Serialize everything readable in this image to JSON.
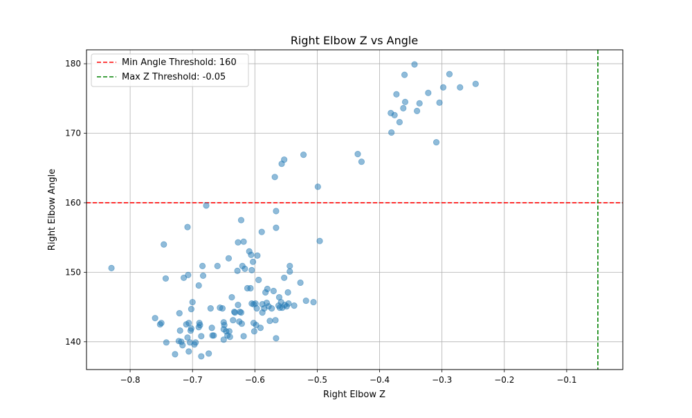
{
  "chart_data": {
    "type": "scatter",
    "title": "Right Elbow Z vs Angle",
    "xlabel": "Right Elbow Z",
    "ylabel": "Right Elbow Angle",
    "xlim": [
      -0.87,
      -0.01
    ],
    "ylim": [
      136,
      182
    ],
    "xticks": [
      -0.8,
      -0.7,
      -0.6,
      -0.5,
      -0.4,
      -0.3,
      -0.2,
      -0.1
    ],
    "xtick_labels": [
      "−0.8",
      "−0.7",
      "−0.6",
      "−0.5",
      "−0.4",
      "−0.3",
      "−0.2",
      "−0.1"
    ],
    "yticks": [
      140,
      150,
      160,
      170,
      180
    ],
    "ytick_labels": [
      "140",
      "150",
      "160",
      "170",
      "180"
    ],
    "grid": true,
    "legend_position": "top-left",
    "point_color": "#1f77b4",
    "point_alpha": 0.5,
    "thresholds": [
      {
        "label": "Min Angle Threshold: 160",
        "orientation": "horizontal",
        "value": 160,
        "color": "#ff0000"
      },
      {
        "label": "Max Z Threshold: -0.05",
        "orientation": "vertical",
        "value": -0.05,
        "color": "#008000"
      }
    ],
    "points": [
      [
        -0.83,
        150.6
      ],
      [
        -0.76,
        143.4
      ],
      [
        -0.752,
        142.5
      ],
      [
        -0.75,
        142.7
      ],
      [
        -0.746,
        154.0
      ],
      [
        -0.743,
        149.1
      ],
      [
        -0.742,
        139.9
      ],
      [
        -0.728,
        138.2
      ],
      [
        -0.722,
        140.1
      ],
      [
        -0.721,
        144.1
      ],
      [
        -0.72,
        141.6
      ],
      [
        -0.718,
        140.0
      ],
      [
        -0.716,
        139.5
      ],
      [
        -0.714,
        149.2
      ],
      [
        -0.71,
        142.5
      ],
      [
        -0.708,
        156.5
      ],
      [
        -0.708,
        140.6
      ],
      [
        -0.707,
        149.6
      ],
      [
        -0.706,
        142.7
      ],
      [
        -0.706,
        138.6
      ],
      [
        -0.704,
        139.9
      ],
      [
        -0.703,
        141.6
      ],
      [
        -0.702,
        141.9
      ],
      [
        -0.702,
        144.7
      ],
      [
        -0.7,
        145.7
      ],
      [
        -0.697,
        139.6
      ],
      [
        -0.695,
        139.9
      ],
      [
        -0.69,
        148.1
      ],
      [
        -0.69,
        142.1
      ],
      [
        -0.689,
        142.7
      ],
      [
        -0.688,
        142.4
      ],
      [
        -0.686,
        137.9
      ],
      [
        -0.686,
        140.8
      ],
      [
        -0.684,
        150.9
      ],
      [
        -0.683,
        149.5
      ],
      [
        -0.678,
        159.6
      ],
      [
        -0.674,
        138.3
      ],
      [
        -0.671,
        144.8
      ],
      [
        -0.669,
        142.0
      ],
      [
        -0.668,
        140.9
      ],
      [
        -0.666,
        140.9
      ],
      [
        -0.66,
        150.9
      ],
      [
        -0.656,
        144.9
      ],
      [
        -0.652,
        144.8
      ],
      [
        -0.65,
        141.8
      ],
      [
        -0.65,
        140.3
      ],
      [
        -0.65,
        142.8
      ],
      [
        -0.649,
        142.4
      ],
      [
        -0.646,
        141.5
      ],
      [
        -0.644,
        140.9
      ],
      [
        -0.642,
        152.0
      ],
      [
        -0.641,
        141.5
      ],
      [
        -0.64,
        140.7
      ],
      [
        -0.637,
        146.4
      ],
      [
        -0.635,
        143.1
      ],
      [
        -0.633,
        144.3
      ],
      [
        -0.632,
        144.2
      ],
      [
        -0.628,
        150.2
      ],
      [
        -0.627,
        154.3
      ],
      [
        -0.627,
        145.3
      ],
      [
        -0.625,
        142.9
      ],
      [
        -0.624,
        144.3
      ],
      [
        -0.622,
        144.2
      ],
      [
        -0.622,
        157.5
      ],
      [
        -0.621,
        142.6
      ],
      [
        -0.62,
        150.9
      ],
      [
        -0.618,
        154.4
      ],
      [
        -0.618,
        140.8
      ],
      [
        -0.616,
        150.5
      ],
      [
        -0.612,
        147.7
      ],
      [
        -0.609,
        153.0
      ],
      [
        -0.607,
        147.7
      ],
      [
        -0.606,
        152.5
      ],
      [
        -0.605,
        145.5
      ],
      [
        -0.605,
        150.3
      ],
      [
        -0.603,
        151.5
      ],
      [
        -0.602,
        145.4
      ],
      [
        -0.602,
        142.7
      ],
      [
        -0.601,
        141.5
      ],
      [
        -0.599,
        145.5
      ],
      [
        -0.598,
        142.4
      ],
      [
        -0.597,
        144.8
      ],
      [
        -0.596,
        152.4
      ],
      [
        -0.594,
        148.9
      ],
      [
        -0.591,
        142.0
      ],
      [
        -0.589,
        155.8
      ],
      [
        -0.588,
        144.2
      ],
      [
        -0.588,
        145.4
      ],
      [
        -0.585,
        144.8
      ],
      [
        -0.583,
        147.1
      ],
      [
        -0.581,
        145.6
      ],
      [
        -0.58,
        147.6
      ],
      [
        -0.578,
        145.1
      ],
      [
        -0.576,
        143.0
      ],
      [
        -0.573,
        144.8
      ],
      [
        -0.57,
        147.3
      ],
      [
        -0.568,
        163.7
      ],
      [
        -0.567,
        143.1
      ],
      [
        -0.566,
        140.5
      ],
      [
        -0.566,
        156.4
      ],
      [
        -0.566,
        158.8
      ],
      [
        -0.562,
        145.2
      ],
      [
        -0.561,
        146.4
      ],
      [
        -0.56,
        144.9
      ],
      [
        -0.558,
        145.7
      ],
      [
        -0.557,
        165.6
      ],
      [
        -0.556,
        144.9
      ],
      [
        -0.553,
        166.2
      ],
      [
        -0.553,
        149.2
      ],
      [
        -0.552,
        145.3
      ],
      [
        -0.549,
        145.1
      ],
      [
        -0.547,
        147.1
      ],
      [
        -0.546,
        145.5
      ],
      [
        -0.544,
        150.9
      ],
      [
        -0.544,
        150.1
      ],
      [
        -0.537,
        145.2
      ],
      [
        -0.527,
        148.5
      ],
      [
        -0.522,
        166.9
      ],
      [
        -0.518,
        145.9
      ],
      [
        -0.506,
        145.7
      ],
      [
        -0.499,
        162.3
      ],
      [
        -0.496,
        154.5
      ],
      [
        -0.435,
        167.0
      ],
      [
        -0.429,
        165.9
      ],
      [
        -0.382,
        172.9
      ],
      [
        -0.381,
        170.1
      ],
      [
        -0.376,
        172.6
      ],
      [
        -0.373,
        175.6
      ],
      [
        -0.368,
        171.6
      ],
      [
        -0.362,
        173.6
      ],
      [
        -0.36,
        178.4
      ],
      [
        -0.359,
        174.5
      ],
      [
        -0.344,
        179.9
      ],
      [
        -0.34,
        173.2
      ],
      [
        -0.336,
        174.3
      ],
      [
        -0.322,
        175.8
      ],
      [
        -0.309,
        168.7
      ],
      [
        -0.304,
        174.4
      ],
      [
        -0.298,
        176.6
      ],
      [
        -0.288,
        178.5
      ],
      [
        -0.271,
        176.6
      ],
      [
        -0.246,
        177.1
      ]
    ]
  }
}
